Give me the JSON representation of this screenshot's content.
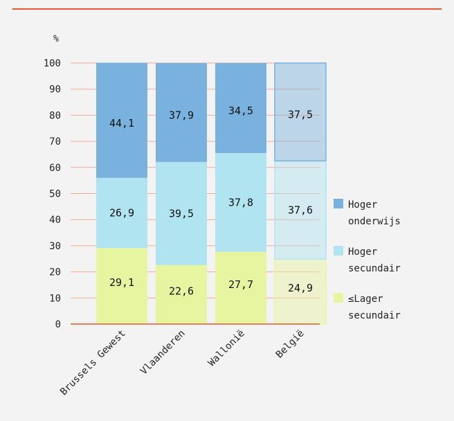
{
  "chart_data": {
    "type": "bar",
    "stacked": true,
    "ylabel": "%",
    "ylim": [
      0,
      100
    ],
    "yticks": [
      0,
      10,
      20,
      30,
      40,
      50,
      60,
      70,
      80,
      90,
      100
    ],
    "categories": [
      "Brussels Gewest",
      "Vlaanderen",
      "Wallonië",
      "België"
    ],
    "series": [
      {
        "name": "≤Lager secundair",
        "legend_lines": [
          "≤Lager",
          "secundair"
        ],
        "values": [
          29.1,
          22.6,
          27.7,
          24.9
        ],
        "labels": [
          "29,1",
          "22,6",
          "27,7",
          "24,9"
        ],
        "color": "#e8f5a0"
      },
      {
        "name": "Hoger secundair",
        "legend_lines": [
          "Hoger",
          "secundair"
        ],
        "values": [
          26.9,
          39.5,
          37.8,
          37.6
        ],
        "labels": [
          "26,9",
          "39,5",
          "37,8",
          "37,6"
        ],
        "color": "#b0e4f0"
      },
      {
        "name": "Hoger onderwijs",
        "legend_lines": [
          "Hoger",
          "onderwijs"
        ],
        "values": [
          44.1,
          37.9,
          34.5,
          37.5
        ],
        "labels": [
          "44,1",
          "37,9",
          "34,5",
          "37,5"
        ],
        "color": "#79b2de"
      }
    ],
    "highlight_last_category_light": true,
    "legend_position": "right",
    "grid": true,
    "colors": {
      "gridline": "#f4a896",
      "axis": "#e8572f",
      "rule": "#e8572f"
    }
  }
}
